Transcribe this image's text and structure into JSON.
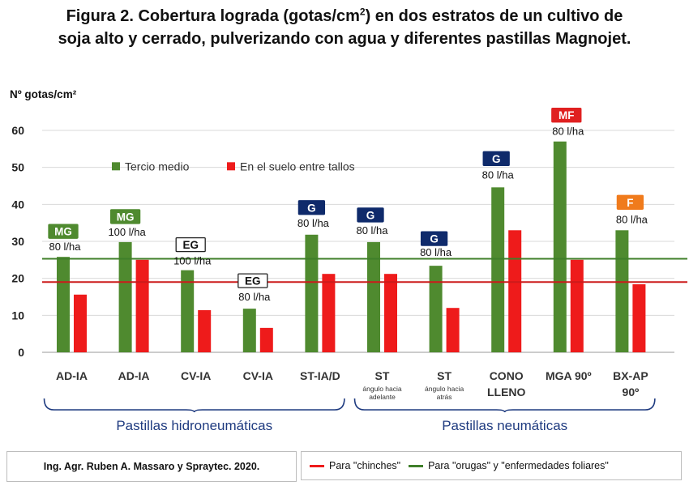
{
  "title_line1_pre": "Figura 2. Cobertura lograda (gotas/cm",
  "title_sup": "2",
  "title_line1_post": ") en dos estratos de un cultivo de",
  "title_line2": "soja alto y cerrado, pulverizando con agua y diferentes pastillas Magnojet.",
  "colors": {
    "green": "#4f8a2f",
    "red": "#ee1b1b",
    "navy": "#0f2a6b",
    "hline_green": "#3f7f2a",
    "hline_red": "#cc1b1b",
    "mf_red": "#e02020",
    "f_orange": "#f07b1c",
    "group_bracket": "#1f3b80",
    "group_text": "#1f3b80"
  },
  "chart_data": {
    "type": "bar",
    "ylabel": "Nº gotas/cm²",
    "ylim": [
      0,
      60
    ],
    "yticks": [
      0,
      10,
      20,
      30,
      40,
      50,
      60
    ],
    "categories": [
      {
        "label": "AD-IA",
        "sub": ""
      },
      {
        "label": "AD-IA",
        "sub": ""
      },
      {
        "label": "CV-IA",
        "sub": ""
      },
      {
        "label": "CV-IA",
        "sub": ""
      },
      {
        "label": "ST-IA/D",
        "sub": ""
      },
      {
        "label": "ST",
        "sub": "ángulo hacia|adelante"
      },
      {
        "label": "ST",
        "sub": "ángulo hacia|atrás"
      },
      {
        "label": "CONO|LLENO",
        "sub": ""
      },
      {
        "label": "MGA 90º",
        "sub": ""
      },
      {
        "label": "BX-AP|90º",
        "sub": ""
      }
    ],
    "series": [
      {
        "name": "Tercio medio",
        "color": "#4f8a2f",
        "values": [
          25.8,
          29.8,
          22.2,
          11.8,
          31.8,
          29.8,
          23.4,
          44.6,
          57.0,
          33.0
        ]
      },
      {
        "name": "En el suelo entre tallos",
        "color": "#ee1b1b",
        "values": [
          15.6,
          25.0,
          11.4,
          6.6,
          21.2,
          21.2,
          12.0,
          33.0,
          25.0,
          18.4
        ]
      }
    ],
    "bar_annotations": [
      {
        "badge": "MG",
        "badge_style": "green",
        "rate": "80 l/ha"
      },
      {
        "badge": "MG",
        "badge_style": "green",
        "rate": "100 l/ha"
      },
      {
        "badge": "EG",
        "badge_style": "outline",
        "rate": "100 l/ha"
      },
      {
        "badge": "EG",
        "badge_style": "outline",
        "rate": "80 l/ha"
      },
      {
        "badge": "G",
        "badge_style": "navy",
        "rate": "80 l/ha"
      },
      {
        "badge": "G",
        "badge_style": "navy",
        "rate": "80 l/ha"
      },
      {
        "badge": "G",
        "badge_style": "navy",
        "rate": "80 l/ha"
      },
      {
        "badge": "G",
        "badge_style": "navy",
        "rate": "80 l/ha"
      },
      {
        "badge": "MF",
        "badge_style": "red",
        "rate": "80 l/ha"
      },
      {
        "badge": "F",
        "badge_style": "orange",
        "rate": "80 l/ha"
      }
    ],
    "reference_lines": [
      {
        "value": 25.3,
        "color": "#3f7f2a",
        "meaning": "orugas y enfermedades foliares"
      },
      {
        "value": 19.0,
        "color": "#cc1b1b",
        "meaning": "chinches"
      }
    ],
    "groups": [
      {
        "label": "Pastillas hidroneumáticas",
        "from": 0,
        "to": 4
      },
      {
        "label": "Pastillas neumáticas",
        "from": 5,
        "to": 9
      }
    ],
    "legend": [
      "Tercio medio",
      "En el suelo entre tallos"
    ],
    "legend_position": "top-left"
  },
  "footer": {
    "credit": "Ing. Agr. Ruben A. Massaro y Spraytec. 2020.",
    "legend_red": "Para \"chinches\"",
    "legend_green": "Para \"orugas\" y \"enfermedades foliares\""
  }
}
